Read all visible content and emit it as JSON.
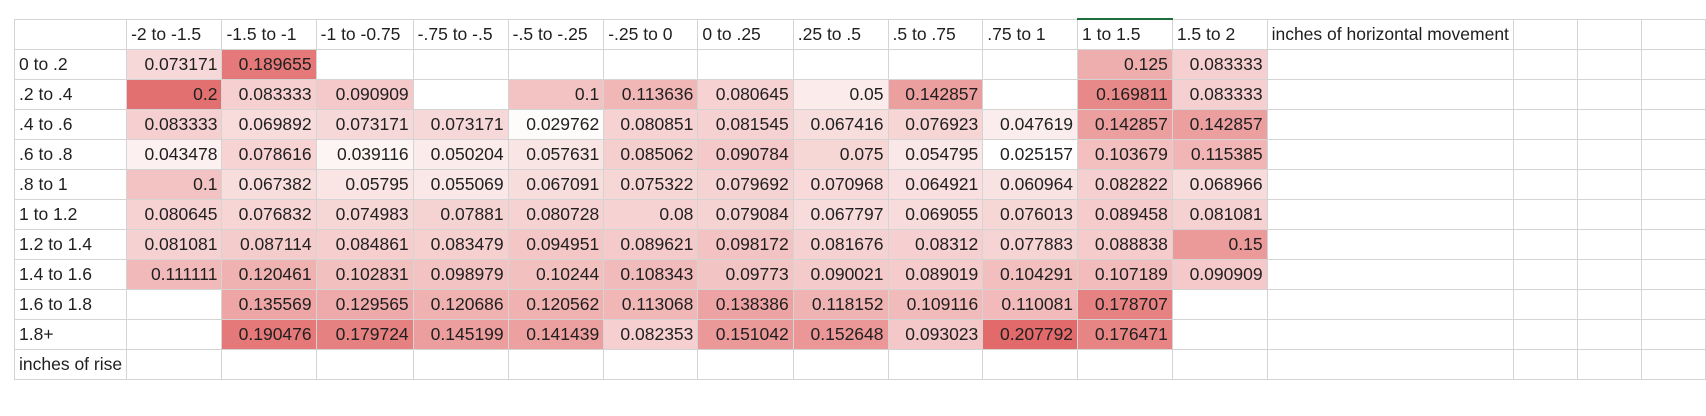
{
  "chart_data": {
    "type": "heatmap",
    "title": "",
    "xlabel": "inches of horizontal movement",
    "ylabel": "inches of rise",
    "columns": [
      "-2 to -1.5",
      "-1.5 to -1",
      "-1 to -0.75",
      "-.75 to -.5",
      "-.5 to -.25",
      "-.25 to 0",
      "0 to .25",
      ".25 to .5",
      ".5 to .75",
      ".75 to 1",
      "1 to 1.5",
      "1.5 to 2"
    ],
    "rows": [
      "0 to .2",
      ".2 to .4",
      ".4 to .6",
      ".6 to .8",
      ".8 to 1",
      "1 to 1.2",
      "1.2 to 1.4",
      "1.4 to 1.6",
      "1.6 to 1.8",
      "1.8+"
    ],
    "values": [
      [
        "0.073171",
        "0.189655",
        "",
        "",
        "",
        "",
        "",
        "",
        "",
        "",
        "0.125",
        "0.083333"
      ],
      [
        "0.2",
        "0.083333",
        "0.090909",
        "",
        "0.1",
        "0.113636",
        "0.080645",
        "0.05",
        "0.142857",
        "",
        "0.169811",
        "0.083333"
      ],
      [
        "0.083333",
        "0.069892",
        "0.073171",
        "0.073171",
        "0.029762",
        "0.080851",
        "0.081545",
        "0.067416",
        "0.076923",
        "0.047619",
        "0.142857",
        "0.142857"
      ],
      [
        "0.043478",
        "0.078616",
        "0.039116",
        "0.050204",
        "0.057631",
        "0.085062",
        "0.090784",
        "0.075",
        "0.054795",
        "0.025157",
        "0.103679",
        "0.115385"
      ],
      [
        "0.1",
        "0.067382",
        "0.05795",
        "0.055069",
        "0.067091",
        "0.075322",
        "0.079692",
        "0.070968",
        "0.064921",
        "0.060964",
        "0.082822",
        "0.068966"
      ],
      [
        "0.080645",
        "0.076832",
        "0.074983",
        "0.07881",
        "0.080728",
        "0.08",
        "0.079084",
        "0.067797",
        "0.069055",
        "0.076013",
        "0.089458",
        "0.081081"
      ],
      [
        "0.081081",
        "0.087114",
        "0.084861",
        "0.083479",
        "0.094951",
        "0.089621",
        "0.098172",
        "0.081676",
        "0.08312",
        "0.077883",
        "0.088838",
        "0.15"
      ],
      [
        "0.111111",
        "0.120461",
        "0.102831",
        "0.098979",
        "0.10244",
        "0.108343",
        "0.09773",
        "0.090021",
        "0.089019",
        "0.104291",
        "0.107189",
        "0.090909"
      ],
      [
        "",
        "0.135569",
        "0.129565",
        "0.120686",
        "0.120562",
        "0.113068",
        "0.138386",
        "0.118152",
        "0.109116",
        "0.110081",
        "0.178707",
        ""
      ],
      [
        "",
        "0.190476",
        "0.179724",
        "0.145199",
        "0.141439",
        "0.082353",
        "0.151042",
        "0.152648",
        "0.093023",
        "0.207792",
        "0.176471",
        ""
      ]
    ],
    "color_scale": {
      "low": "#ffffff",
      "high": "#e26a6a",
      "min": 0.025157,
      "max": 0.207792
    },
    "grid": true
  },
  "colors": {
    "grid_line": "#d4d4d4",
    "selected_cell_border": "#1e6e3c"
  }
}
